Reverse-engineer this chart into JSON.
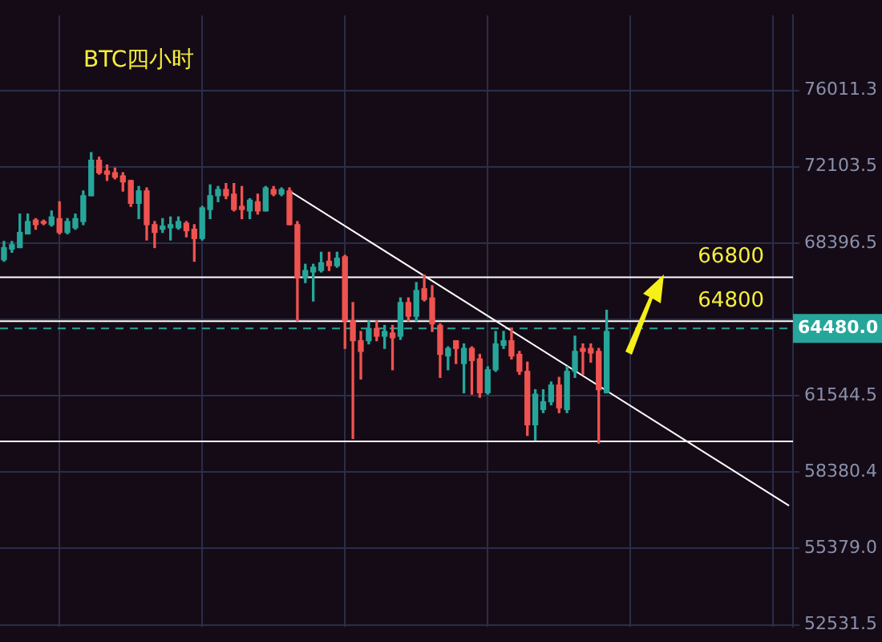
{
  "chart_data": {
    "type": "candlestick",
    "title": "BTC四小时",
    "categories": [
      null,
      null,
      null,
      null,
      null,
      null,
      null,
      null,
      null,
      null,
      null,
      null,
      null,
      null,
      null,
      null,
      null,
      null,
      null,
      null,
      null,
      null,
      null,
      null,
      null,
      null,
      null,
      null,
      null,
      null,
      null,
      null,
      null,
      null,
      null,
      null,
      null,
      null,
      null,
      null,
      null,
      null,
      null,
      null,
      null,
      null,
      null,
      null,
      null,
      null,
      null,
      null,
      null,
      null,
      null,
      null,
      null,
      null,
      null,
      null,
      null,
      null,
      null,
      null,
      null,
      null,
      null,
      null,
      null,
      null,
      null,
      null,
      null,
      null,
      null,
      null,
      null,
      null,
      null,
      null,
      null,
      null,
      null,
      null,
      null,
      null,
      null,
      null,
      null,
      null,
      null,
      null,
      null,
      null,
      null,
      null,
      null,
      null,
      null,
      null
    ],
    "ohlc": [
      [
        67610,
        68470,
        67540,
        68180
      ],
      [
        68110,
        68470,
        67960,
        68320
      ],
      [
        68180,
        69780,
        68180,
        68900
      ],
      [
        68830,
        69780,
        68830,
        69420
      ],
      [
        69490,
        69560,
        69050,
        69270
      ],
      [
        69420,
        69490,
        69270,
        69340
      ],
      [
        69270,
        69930,
        69200,
        69640
      ],
      [
        69560,
        70380,
        68830,
        68900
      ],
      [
        68900,
        69560,
        68830,
        69420
      ],
      [
        69120,
        69780,
        69050,
        69560
      ],
      [
        69420,
        70900,
        69270,
        70670
      ],
      [
        70670,
        72810,
        70670,
        72420
      ],
      [
        72420,
        72580,
        71730,
        71800
      ],
      [
        71880,
        72180,
        71420,
        71730
      ],
      [
        71800,
        72030,
        71500,
        71580
      ],
      [
        71650,
        71800,
        70900,
        71350
      ],
      [
        71420,
        71420,
        70150,
        70300
      ],
      [
        70300,
        71120,
        69560,
        70900
      ],
      [
        70900,
        71050,
        68540,
        69270
      ],
      [
        69270,
        69420,
        68180,
        68900
      ],
      [
        69050,
        69560,
        68900,
        69200
      ],
      [
        69120,
        69640,
        68540,
        69270
      ],
      [
        69120,
        69640,
        69050,
        69420
      ],
      [
        69340,
        69420,
        68690,
        68980
      ],
      [
        69050,
        69270,
        67540,
        68610
      ],
      [
        68610,
        70150,
        68540,
        70080
      ],
      [
        70000,
        71200,
        69560,
        70670
      ],
      [
        70670,
        71120,
        70380,
        70970
      ],
      [
        70970,
        71270,
        70520,
        70670
      ],
      [
        70750,
        71270,
        69930,
        70000
      ],
      [
        70150,
        71120,
        69560,
        70000
      ],
      [
        69930,
        70520,
        69560,
        70450
      ],
      [
        70380,
        70750,
        69780,
        69930
      ],
      [
        69930,
        71120,
        69930,
        71050
      ],
      [
        70970,
        71120,
        70670,
        70750
      ],
      [
        70750,
        71050,
        70670,
        70970
      ],
      [
        70900,
        71050,
        69270,
        69270
      ],
      [
        69270,
        69420,
        64810,
        66760
      ],
      [
        66760,
        67400,
        66550,
        67110
      ],
      [
        67040,
        67400,
        65710,
        67260
      ],
      [
        67110,
        67960,
        67040,
        67470
      ],
      [
        67540,
        67960,
        67110,
        67330
      ],
      [
        67330,
        67960,
        67260,
        67680
      ],
      [
        67750,
        67820,
        63590,
        64810
      ],
      [
        64810,
        65640,
        59750,
        63930
      ],
      [
        63930,
        64340,
        62260,
        63460
      ],
      [
        63930,
        64810,
        63790,
        64470
      ],
      [
        64470,
        64810,
        63930,
        64130
      ],
      [
        64130,
        64610,
        63590,
        64340
      ],
      [
        64270,
        64610,
        62660,
        64060
      ],
      [
        64130,
        65850,
        63990,
        65640
      ],
      [
        65640,
        65850,
        64810,
        65020
      ],
      [
        65020,
        66550,
        64810,
        66190
      ],
      [
        66270,
        66900,
        65710,
        65780
      ],
      [
        65850,
        66410,
        64340,
        64680
      ],
      [
        64610,
        64680,
        62330,
        63330
      ],
      [
        63260,
        63660,
        62660,
        63590
      ],
      [
        63930,
        63930,
        62930,
        63590
      ],
      [
        62930,
        63790,
        61670,
        63590
      ],
      [
        63590,
        63660,
        61610,
        63060
      ],
      [
        63130,
        63330,
        61480,
        61670
      ],
      [
        61670,
        62790,
        61610,
        62660
      ],
      [
        62660,
        64340,
        62590,
        63790
      ],
      [
        63730,
        64340,
        63590,
        63930
      ],
      [
        63930,
        64470,
        63130,
        63260
      ],
      [
        63330,
        63460,
        62460,
        62590
      ],
      [
        62590,
        62990,
        59880,
        60320
      ],
      [
        60320,
        61800,
        59690,
        61610
      ],
      [
        60960,
        61800,
        60830,
        61290
      ],
      [
        61290,
        62130,
        61160,
        62000
      ],
      [
        62000,
        62330,
        60830,
        61030
      ],
      [
        60960,
        62790,
        60830,
        62590
      ],
      [
        62590,
        64130,
        62330,
        63460
      ],
      [
        63590,
        63790,
        62460,
        63460
      ],
      [
        63590,
        63790,
        62990,
        63390
      ],
      [
        63460,
        63590,
        59560,
        61800
      ],
      [
        61670,
        65290,
        61670,
        64340
      ],
      null,
      null,
      null,
      null,
      null,
      null,
      null,
      null,
      null,
      null,
      null,
      null,
      null,
      null,
      null,
      null,
      null,
      null,
      null,
      null,
      null,
      null,
      null
    ],
    "colors": [
      "#26a69a",
      "#26a69a",
      "#26a69a",
      "#26a69a",
      "#ef5350",
      "#ef5350",
      "#26a69a",
      "#ef5350",
      "#26a69a",
      "#26a69a",
      "#26a69a",
      "#26a69a",
      "#ef5350",
      "#ef5350",
      "#ef5350",
      "#ef5350",
      "#ef5350",
      "#26a69a",
      "#ef5350",
      "#ef5350",
      "#26a69a",
      "#26a69a",
      "#26a69a",
      "#ef5350",
      "#ef5350",
      "#26a69a",
      "#26a69a",
      "#26a69a",
      "#ef5350",
      "#ef5350",
      "#ef5350",
      "#26a69a",
      "#ef5350",
      "#26a69a",
      "#ef5350",
      "#26a69a",
      "#ef5350",
      "#ef5350",
      "#26a69a",
      "#26a69a",
      "#26a69a",
      "#ef5350",
      "#26a69a",
      "#ef5350",
      "#ef5350",
      "#ef5350",
      "#26a69a",
      "#ef5350",
      "#26a69a",
      "#ef5350",
      "#26a69a",
      "#ef5350",
      "#26a69a",
      "#ef5350",
      "#ef5350",
      "#ef5350",
      "#26a69a",
      "#ef5350",
      "#26a69a",
      "#ef5350",
      "#ef5350",
      "#26a69a",
      "#26a69a",
      "#26a69a",
      "#ef5350",
      "#ef5350",
      "#ef5350",
      "#26a69a",
      "#26a69a",
      "#26a69a",
      "#ef5350",
      "#26a69a",
      "#26a69a",
      "#ef5350",
      "#ef5350",
      "#ef5350",
      "#26a69a",
      null,
      null,
      null,
      null,
      null,
      null,
      null,
      null,
      null,
      null,
      null,
      null,
      null,
      null,
      null,
      null,
      null,
      null,
      null,
      null,
      null,
      null,
      null
    ],
    "series": [
      {
        "type": "line",
        "color": "#ffffff",
        "values": [
          null,
          null,
          null,
          null,
          null,
          null,
          null,
          null,
          null,
          null,
          null,
          null,
          null,
          null,
          null,
          null,
          null,
          null,
          null,
          null,
          null,
          null,
          null,
          null,
          null,
          null,
          null,
          null,
          null,
          null,
          null,
          null,
          null,
          null,
          null,
          null,
          70900,
          null,
          null,
          null,
          null,
          null,
          null,
          null,
          null,
          null,
          null,
          null,
          null,
          null,
          null,
          null,
          null,
          null,
          null,
          null,
          null,
          null,
          null,
          null,
          null,
          null,
          null,
          null,
          null,
          null,
          null,
          null,
          null,
          null,
          null,
          null,
          null,
          null,
          null,
          null,
          null,
          null,
          null,
          null,
          null,
          null,
          null,
          null,
          null,
          null,
          null,
          null,
          null,
          null,
          null,
          null,
          null,
          null,
          null,
          null,
          null,
          null,
          null,
          57040
        ]
      }
    ],
    "ref_lines": [
      {
        "axis": "y",
        "value": 66800,
        "label": "66800",
        "color": "#ffffff"
      },
      {
        "axis": "y",
        "value": 64800,
        "label": "64800",
        "color": "#ffffff"
      },
      {
        "axis": "y",
        "value": 59630,
        "color": "#ffffff"
      },
      {
        "axis": "y",
        "value": 64480,
        "label": "64480.0",
        "color": "#26a69a",
        "line_style": "dashed"
      }
    ],
    "log": true,
    "ylim": [
      52467,
      80050
    ],
    "yticks": [
      {
        "value": 52531.5,
        "label": "52531.5"
      },
      {
        "value": 55379.0,
        "label": "55379.0"
      },
      58380.4,
      61544.5,
      {
        "value": 64880,
        "label": null
      },
      68396.5,
      72103.5,
      76011.3
    ],
    "grid": true,
    "tick_labels": "y"
  }
}
